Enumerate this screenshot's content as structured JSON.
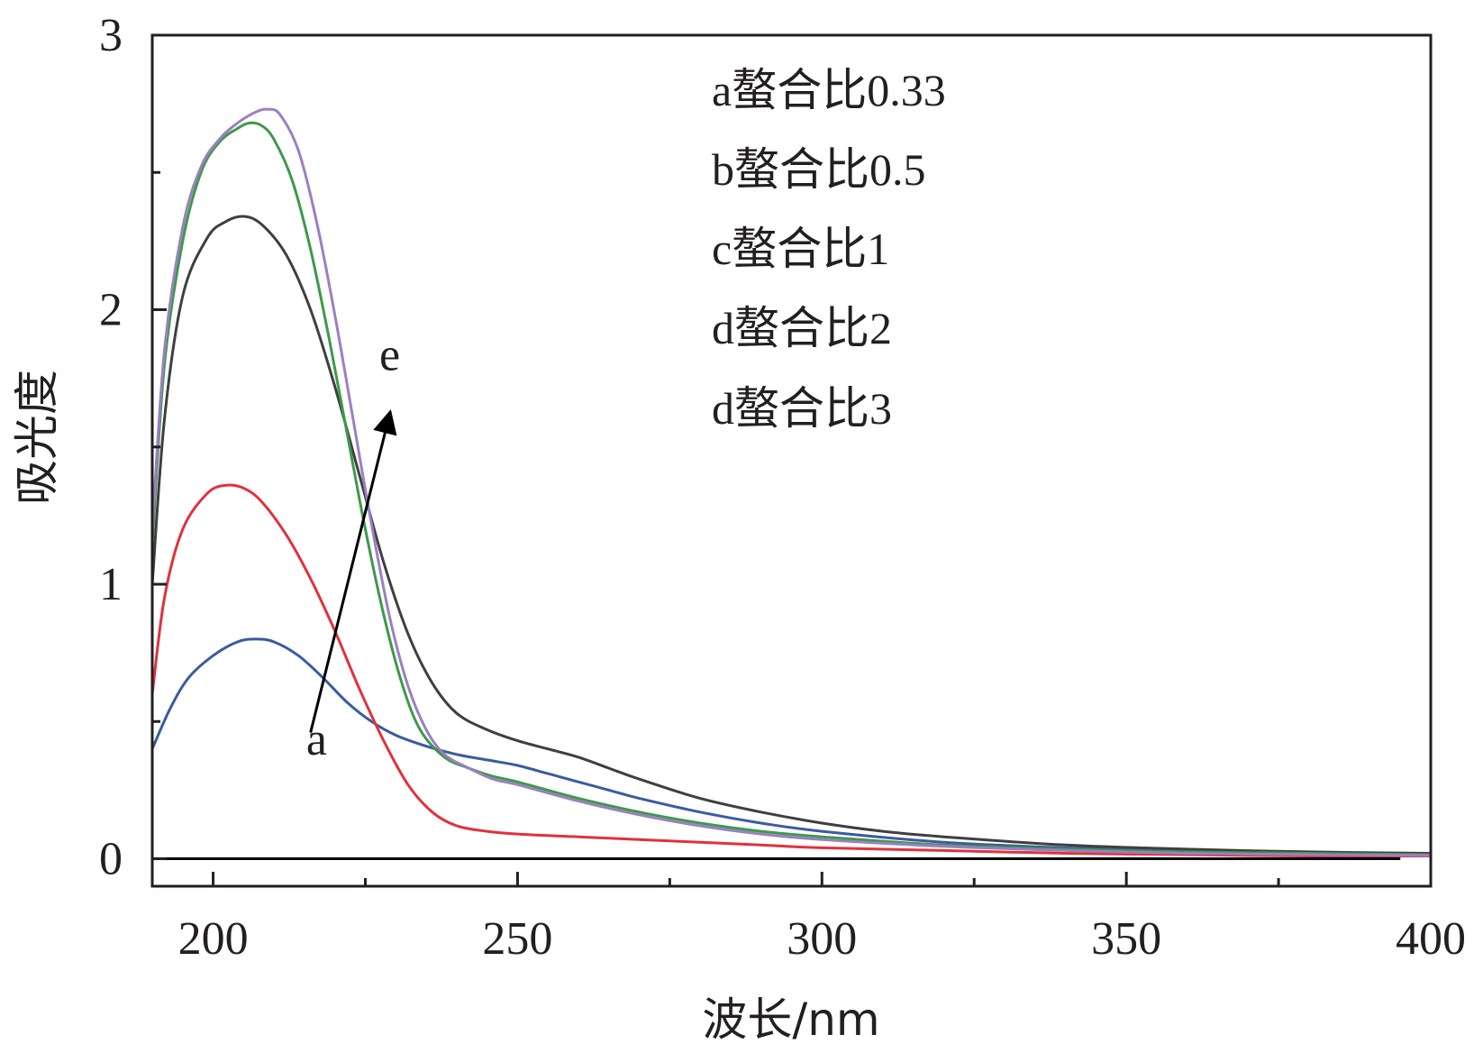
{
  "chart_data": {
    "type": "line",
    "title": "",
    "xlabel": "波长/nm",
    "ylabel": "吸光度",
    "xlim": [
      190,
      400
    ],
    "ylim": [
      -0.1,
      3
    ],
    "xticks": [
      200,
      250,
      300,
      350,
      400
    ],
    "xtick_labels": [
      "200",
      "250",
      "300",
      "350",
      "400"
    ],
    "yticks": [
      0,
      1,
      2,
      3
    ],
    "ytick_labels": [
      "0",
      "1",
      "2",
      "3"
    ],
    "grid": false,
    "legend_position": "top-right",
    "legend_entries": [
      "a螯合比0.33",
      "b螯合比0.5",
      "c螯合比1",
      "d螯合比2",
      "d螯合比3"
    ],
    "baseline": 0,
    "annotations": [
      {
        "text": "a",
        "x": 217,
        "y": 0.38
      },
      {
        "text": "e",
        "x": 229,
        "y": 1.78
      }
    ],
    "arrow": {
      "from": [
        216,
        0.46
      ],
      "to": [
        229,
        1.62
      ]
    },
    "series": [
      {
        "color": "#3a5ba0",
        "points": [
          [
            190,
            0.4
          ],
          [
            193,
            0.55
          ],
          [
            196,
            0.66
          ],
          [
            200,
            0.74
          ],
          [
            204,
            0.79
          ],
          [
            207,
            0.8
          ],
          [
            210,
            0.79
          ],
          [
            214,
            0.74
          ],
          [
            218,
            0.66
          ],
          [
            222,
            0.57
          ],
          [
            226,
            0.5
          ],
          [
            230,
            0.45
          ],
          [
            235,
            0.41
          ],
          [
            240,
            0.38
          ],
          [
            245,
            0.36
          ],
          [
            250,
            0.34
          ],
          [
            255,
            0.31
          ],
          [
            260,
            0.28
          ],
          [
            265,
            0.25
          ],
          [
            270,
            0.22
          ],
          [
            280,
            0.17
          ],
          [
            290,
            0.13
          ],
          [
            300,
            0.1
          ],
          [
            320,
            0.06
          ],
          [
            340,
            0.04
          ],
          [
            360,
            0.03
          ],
          [
            380,
            0.02
          ],
          [
            400,
            0.01
          ]
        ]
      },
      {
        "color": "#e0323c",
        "points": [
          [
            190,
            0.6
          ],
          [
            192,
            0.95
          ],
          [
            195,
            1.2
          ],
          [
            199,
            1.33
          ],
          [
            202,
            1.36
          ],
          [
            205,
            1.35
          ],
          [
            208,
            1.3
          ],
          [
            212,
            1.18
          ],
          [
            216,
            1.02
          ],
          [
            220,
            0.83
          ],
          [
            224,
            0.62
          ],
          [
            228,
            0.43
          ],
          [
            232,
            0.27
          ],
          [
            236,
            0.17
          ],
          [
            240,
            0.12
          ],
          [
            245,
            0.1
          ],
          [
            250,
            0.09
          ],
          [
            260,
            0.08
          ],
          [
            270,
            0.07
          ],
          [
            280,
            0.06
          ],
          [
            290,
            0.05
          ],
          [
            300,
            0.04
          ],
          [
            320,
            0.03
          ],
          [
            340,
            0.02
          ],
          [
            360,
            0.015
          ],
          [
            380,
            0.01
          ],
          [
            400,
            0.01
          ]
        ]
      },
      {
        "color": "#3f3f3f",
        "points": [
          [
            190,
            1.0
          ],
          [
            192,
            1.6
          ],
          [
            195,
            2.05
          ],
          [
            199,
            2.26
          ],
          [
            202,
            2.32
          ],
          [
            205,
            2.34
          ],
          [
            208,
            2.31
          ],
          [
            212,
            2.2
          ],
          [
            216,
            2.0
          ],
          [
            220,
            1.72
          ],
          [
            224,
            1.4
          ],
          [
            228,
            1.08
          ],
          [
            232,
            0.82
          ],
          [
            236,
            0.64
          ],
          [
            240,
            0.53
          ],
          [
            245,
            0.47
          ],
          [
            250,
            0.43
          ],
          [
            255,
            0.4
          ],
          [
            260,
            0.37
          ],
          [
            265,
            0.33
          ],
          [
            270,
            0.29
          ],
          [
            280,
            0.22
          ],
          [
            290,
            0.17
          ],
          [
            300,
            0.13
          ],
          [
            310,
            0.1
          ],
          [
            320,
            0.08
          ],
          [
            340,
            0.05
          ],
          [
            360,
            0.035
          ],
          [
            380,
            0.025
          ],
          [
            400,
            0.02
          ]
        ]
      },
      {
        "color": "#3c9a4a",
        "points": [
          [
            190,
            1.15
          ],
          [
            192,
            1.8
          ],
          [
            195,
            2.25
          ],
          [
            198,
            2.5
          ],
          [
            201,
            2.61
          ],
          [
            204,
            2.66
          ],
          [
            206,
            2.68
          ],
          [
            208,
            2.67
          ],
          [
            210,
            2.62
          ],
          [
            213,
            2.47
          ],
          [
            216,
            2.22
          ],
          [
            219,
            1.9
          ],
          [
            222,
            1.55
          ],
          [
            225,
            1.2
          ],
          [
            228,
            0.89
          ],
          [
            231,
            0.64
          ],
          [
            234,
            0.47
          ],
          [
            238,
            0.37
          ],
          [
            242,
            0.33
          ],
          [
            246,
            0.3
          ],
          [
            250,
            0.28
          ],
          [
            260,
            0.22
          ],
          [
            270,
            0.17
          ],
          [
            280,
            0.13
          ],
          [
            290,
            0.1
          ],
          [
            300,
            0.08
          ],
          [
            320,
            0.05
          ],
          [
            340,
            0.035
          ],
          [
            360,
            0.025
          ],
          [
            380,
            0.02
          ],
          [
            400,
            0.015
          ]
        ]
      },
      {
        "color": "#9b7fc2",
        "points": [
          [
            190,
            1.2
          ],
          [
            192,
            1.85
          ],
          [
            195,
            2.3
          ],
          [
            198,
            2.52
          ],
          [
            201,
            2.62
          ],
          [
            204,
            2.68
          ],
          [
            207,
            2.72
          ],
          [
            209,
            2.73
          ],
          [
            211,
            2.71
          ],
          [
            214,
            2.58
          ],
          [
            217,
            2.32
          ],
          [
            220,
            1.98
          ],
          [
            223,
            1.6
          ],
          [
            226,
            1.22
          ],
          [
            229,
            0.88
          ],
          [
            232,
            0.63
          ],
          [
            235,
            0.47
          ],
          [
            238,
            0.38
          ],
          [
            242,
            0.33
          ],
          [
            246,
            0.29
          ],
          [
            250,
            0.27
          ],
          [
            260,
            0.21
          ],
          [
            270,
            0.16
          ],
          [
            280,
            0.12
          ],
          [
            290,
            0.09
          ],
          [
            300,
            0.07
          ],
          [
            320,
            0.045
          ],
          [
            340,
            0.03
          ],
          [
            360,
            0.02
          ],
          [
            380,
            0.015
          ],
          [
            400,
            0.012
          ]
        ]
      }
    ]
  }
}
